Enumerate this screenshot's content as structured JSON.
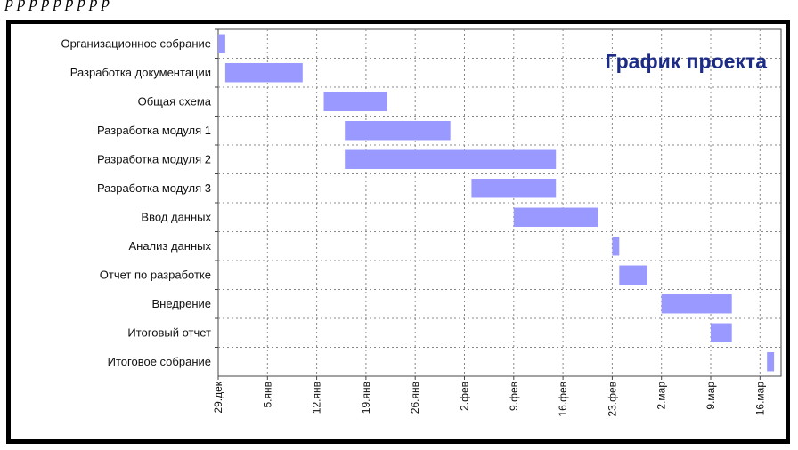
{
  "caption_fragment": "р     р     р  р     р  р     р       р                    р",
  "chart_data": {
    "type": "bar",
    "orientation": "horizontal-gantt",
    "title": "График проекта",
    "xlabel": "",
    "ylabel": "",
    "grid": true,
    "legend": "none",
    "colors": {
      "bar": "#9999ff",
      "grid": "#888888",
      "title": "#1b2b86",
      "frame": "#000000"
    },
    "x_range": [
      "2008-12-29",
      "2009-03-19"
    ],
    "x_ticks": [
      {
        "date": "2008-12-29",
        "label": "29.дек"
      },
      {
        "date": "2009-01-05",
        "label": "5.янв"
      },
      {
        "date": "2009-01-12",
        "label": "12.янв"
      },
      {
        "date": "2009-01-19",
        "label": "19.янв"
      },
      {
        "date": "2009-01-26",
        "label": "26.янв"
      },
      {
        "date": "2009-02-02",
        "label": "2.фев"
      },
      {
        "date": "2009-02-09",
        "label": "9.фев"
      },
      {
        "date": "2009-02-16",
        "label": "16.фев"
      },
      {
        "date": "2009-02-23",
        "label": "23.фев"
      },
      {
        "date": "2009-03-02",
        "label": "2.мар"
      },
      {
        "date": "2009-03-09",
        "label": "9.мар"
      },
      {
        "date": "2009-03-16",
        "label": "16.мар"
      }
    ],
    "tasks": [
      {
        "name": "Организационное собрание",
        "start": "2008-12-29",
        "end": "2008-12-30"
      },
      {
        "name": "Разработка документации",
        "start": "2008-12-30",
        "end": "2009-01-10"
      },
      {
        "name": "Общая схема",
        "start": "2009-01-13",
        "end": "2009-01-22"
      },
      {
        "name": "Разработка модуля 1",
        "start": "2009-01-16",
        "end": "2009-01-31"
      },
      {
        "name": "Разработка модуля 2",
        "start": "2009-01-16",
        "end": "2009-02-15"
      },
      {
        "name": "Разработка модуля 3",
        "start": "2009-02-03",
        "end": "2009-02-15"
      },
      {
        "name": "Ввод данных",
        "start": "2009-02-09",
        "end": "2009-02-21"
      },
      {
        "name": "Анализ данных",
        "start": "2009-02-23",
        "end": "2009-02-24"
      },
      {
        "name": "Отчет по разработке",
        "start": "2009-02-24",
        "end": "2009-02-28"
      },
      {
        "name": "Внедрение",
        "start": "2009-03-02",
        "end": "2009-03-12"
      },
      {
        "name": "Итоговый отчет",
        "start": "2009-03-09",
        "end": "2009-03-12"
      },
      {
        "name": "Итоговое собрание",
        "start": "2009-03-17",
        "end": "2009-03-18"
      }
    ]
  }
}
